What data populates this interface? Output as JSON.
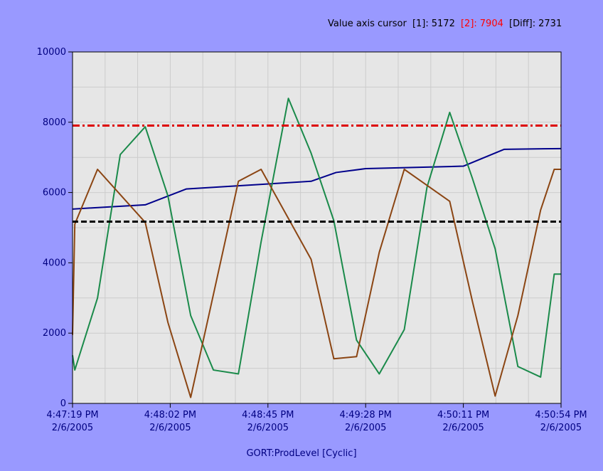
{
  "cursor_readout": {
    "label": "Value axis cursor",
    "c1_label": "[1]:",
    "c1_value": "5172",
    "c2_label": "[2]:",
    "c2_value": "7904",
    "diff_label": "[Diff]:",
    "diff_value": "2731",
    "c1_color": "#000000",
    "c2_color": "#ff0000",
    "diff_color": "#000000"
  },
  "footer_title": "GORT:ProdLevel [Cyclic]",
  "colors": {
    "background": "#9999ff",
    "plot_background": "#e6e6e6",
    "axis_text": "#000080",
    "grid": "#cccccc"
  },
  "chart_data": {
    "type": "line",
    "x_ticks": [
      {
        "time": "4:47:19 PM",
        "date": "2/6/2005"
      },
      {
        "time": "4:48:02 PM",
        "date": "2/6/2005"
      },
      {
        "time": "4:48:45 PM",
        "date": "2/6/2005"
      },
      {
        "time": "4:49:28 PM",
        "date": "2/6/2005"
      },
      {
        "time": "4:50:11 PM",
        "date": "2/6/2005"
      },
      {
        "time": "4:50:54 PM",
        "date": "2/6/2005"
      }
    ],
    "x_range": [
      "4:47:19 PM",
      "4:50:54 PM"
    ],
    "y_ticks": [
      "0",
      "2000",
      "4000",
      "6000",
      "8000",
      "10000"
    ],
    "ylim": [
      0,
      10000
    ],
    "grid": true,
    "series": [
      {
        "color": "#00008b",
        "points": [
          [
            "4:47:19 PM",
            5530
          ],
          [
            "4:47:51 PM",
            5650
          ],
          [
            "4:48:09 PM",
            6100
          ],
          [
            "4:49:04 PM",
            6320
          ],
          [
            "4:49:15 PM",
            6570
          ],
          [
            "4:49:28 PM",
            6680
          ],
          [
            "4:50:11 PM",
            6750
          ],
          [
            "4:50:29 PM",
            7230
          ],
          [
            "4:50:54 PM",
            7250
          ]
        ]
      },
      {
        "color": "#1a8a4a",
        "points": [
          [
            "4:47:19 PM",
            1370
          ],
          [
            "4:47:20 PM",
            950
          ],
          [
            "4:47:30 PM",
            3000
          ],
          [
            "4:47:40 PM",
            7080
          ],
          [
            "4:47:51 PM",
            7870
          ],
          [
            "4:48:01 PM",
            5900
          ],
          [
            "4:48:11 PM",
            2500
          ],
          [
            "4:48:21 PM",
            950
          ],
          [
            "4:48:32 PM",
            840
          ],
          [
            "4:48:42 PM",
            4600
          ],
          [
            "4:48:54 PM",
            8680
          ],
          [
            "4:49:04 PM",
            7120
          ],
          [
            "4:49:14 PM",
            5200
          ],
          [
            "4:49:24 PM",
            1800
          ],
          [
            "4:49:34 PM",
            840
          ],
          [
            "4:49:45 PM",
            2100
          ],
          [
            "4:49:55 PM",
            6150
          ],
          [
            "4:50:05 PM",
            8280
          ],
          [
            "4:50:15 PM",
            6400
          ],
          [
            "4:50:25 PM",
            4400
          ],
          [
            "4:50:35 PM",
            1050
          ],
          [
            "4:50:45 PM",
            750
          ],
          [
            "4:50:51 PM",
            3680
          ],
          [
            "4:50:54 PM",
            3680
          ]
        ]
      },
      {
        "color": "#8b4513",
        "points": [
          [
            "4:47:19 PM",
            1950
          ],
          [
            "4:47:20 PM",
            5100
          ],
          [
            "4:47:30 PM",
            6660
          ],
          [
            "4:47:51 PM",
            5150
          ],
          [
            "4:48:01 PM",
            2300
          ],
          [
            "4:48:11 PM",
            170
          ],
          [
            "4:48:32 PM",
            6320
          ],
          [
            "4:48:42 PM",
            6660
          ],
          [
            "4:49:04 PM",
            4100
          ],
          [
            "4:49:14 PM",
            1270
          ],
          [
            "4:49:24 PM",
            1330
          ],
          [
            "4:49:34 PM",
            4300
          ],
          [
            "4:49:45 PM",
            6660
          ],
          [
            "4:50:05 PM",
            5750
          ],
          [
            "4:50:15 PM",
            2900
          ],
          [
            "4:50:25 PM",
            210
          ],
          [
            "4:50:35 PM",
            2500
          ],
          [
            "4:50:45 PM",
            5500
          ],
          [
            "4:50:51 PM",
            6660
          ],
          [
            "4:50:54 PM",
            6660
          ]
        ]
      }
    ],
    "cursors": [
      {
        "label": "[1]",
        "value": 5172,
        "color": "#000000",
        "style": "dashed"
      },
      {
        "label": "[2]",
        "value": 7904,
        "color": "#dd0000",
        "style": "dash-dot"
      }
    ]
  }
}
